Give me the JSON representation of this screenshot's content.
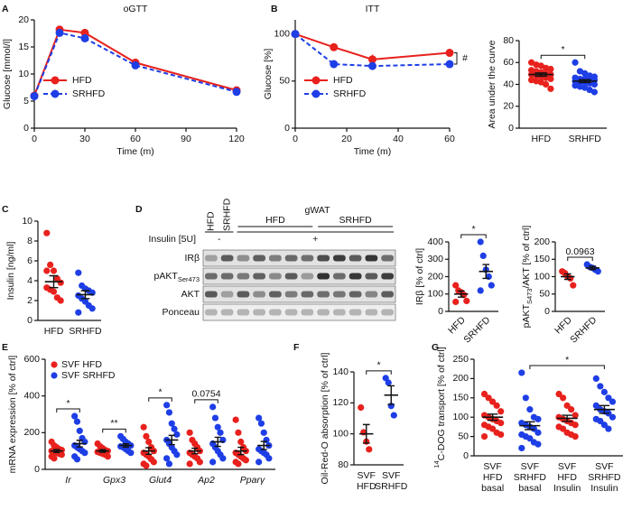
{
  "chart_data": [
    {
      "type": "line",
      "panel": "A",
      "title": "oGTT",
      "x": [
        0,
        15,
        30,
        60,
        120
      ],
      "xlim": [
        0,
        120
      ],
      "xticks": [
        0,
        30,
        60,
        90,
        120
      ],
      "ylim": [
        0,
        20
      ],
      "yticks": [
        0,
        5,
        10,
        15,
        20
      ],
      "xlabel": "Time (m)",
      "ylabel": "Glucose [mmol/l]",
      "legend": "lower left",
      "series": [
        {
          "name": "HFD",
          "color": "#e8211d",
          "values": [
            6.0,
            18.2,
            17.6,
            12.1,
            7.0
          ]
        },
        {
          "name": "SRHFD",
          "color": "#1e3ee6",
          "dashed": true,
          "values": [
            5.9,
            17.6,
            16.6,
            11.6,
            6.7
          ]
        }
      ]
    },
    {
      "type": "line",
      "panel": "B",
      "title": "ITT",
      "x": [
        0,
        15,
        30,
        60
      ],
      "xlim": [
        0,
        60
      ],
      "xticks": [
        0,
        20,
        40,
        60
      ],
      "ylim": [
        0,
        115
      ],
      "yticks": [
        0,
        50,
        100
      ],
      "xlabel": "Time (m)",
      "ylabel": "Glucose [%]",
      "legend": "lower left",
      "annotation": {
        "text": "#"
      },
      "series": [
        {
          "name": "HFD",
          "color": "#e8211d",
          "values": [
            100,
            86,
            73,
            80
          ],
          "errors": [
            0,
            4,
            5,
            4
          ]
        },
        {
          "name": "SRHFD",
          "color": "#1e3ee6",
          "dashed": true,
          "values": [
            100,
            68,
            66,
            68
          ],
          "errors": [
            0,
            3,
            2,
            3
          ]
        }
      ]
    },
    {
      "type": "dot",
      "ylabel": "Area under the curve",
      "categories": [
        "HFD",
        "SRHFD"
      ],
      "ylim": [
        0,
        80
      ],
      "yticks": [
        0,
        20,
        40,
        60,
        80
      ],
      "annotation": {
        "text": "*",
        "between": [
          0,
          1
        ]
      },
      "series": [
        {
          "colors": [
            "#e8211d",
            "#1e3ee6"
          ],
          "values": [
            [
              60,
              58,
              57,
              55,
              54,
              53,
              52,
              51,
              50,
              49,
              49,
              48,
              47,
              46,
              45,
              44,
              43,
              42,
              40,
              36
            ],
            [
              60,
              52,
              50,
              48,
              47,
              46,
              45,
              45,
              44,
              44,
              43,
              42,
              42,
              41,
              40,
              39,
              38,
              37,
              35,
              33
            ]
          ],
          "means": [
            49,
            43
          ],
          "sems": [
            1.5,
            1.3
          ]
        }
      ]
    },
    {
      "type": "dot",
      "panel": "C",
      "ylabel": "Insulin [ng/ml]",
      "categories": [
        "HFD",
        "SRHFD"
      ],
      "ylim": [
        0,
        10
      ],
      "yticks": [
        0,
        2,
        4,
        6,
        8,
        10
      ],
      "series": [
        {
          "colors": [
            "#e8211d",
            "#1e3ee6"
          ],
          "values": [
            [
              8.8,
              5.6,
              5.0,
              4.2,
              3.8,
              3.3,
              3.1,
              2.9,
              2.3,
              2.0,
              5.0
            ],
            [
              4.8,
              3.5,
              3.2,
              3.0,
              2.8,
              2.5,
              2.2,
              1.9,
              1.5,
              1.2,
              0.8
            ]
          ],
          "means": [
            3.9,
            2.6
          ],
          "sems": [
            0.6,
            0.4
          ]
        }
      ]
    },
    {
      "type": "blot",
      "panel": "D",
      "title": "gWAT",
      "lanes": [
        "HFD",
        "SRHFD",
        null,
        null,
        null,
        null,
        null,
        null,
        null,
        null,
        null,
        null
      ],
      "groups": [
        "HFD",
        "SRHFD"
      ],
      "treatment": {
        "label": "Insulin [5U]",
        "levels": [
          "-",
          "+"
        ]
      },
      "rows": [
        "IRβ",
        [
          {
            "text": "pAKT"
          },
          {
            "sub": "Ser473"
          }
        ],
        "AKT",
        "Ponceau"
      ]
    },
    {
      "type": "dot",
      "ylabel": "IRβ [% of ctrl]",
      "categories": [
        "HFD",
        "SRHFD"
      ],
      "rotate_labels": true,
      "ylim": [
        0,
        400
      ],
      "yticks": [
        0,
        100,
        200,
        300,
        400
      ],
      "annotation": {
        "text": "*",
        "between": [
          0,
          1
        ]
      },
      "series": [
        {
          "colors": [
            "#e8211d",
            "#1e3ee6"
          ],
          "values": [
            [
              150,
              120,
              110,
              95,
              60,
              55
            ],
            [
              400,
              320,
              240,
              200,
              150,
              120
            ]
          ],
          "means": [
            100,
            230
          ],
          "sems": [
            18,
            40
          ]
        }
      ]
    },
    {
      "type": "dot",
      "ylabel": [
        {
          "text": "pAKT"
        },
        {
          "sub": "S473"
        },
        {
          "text": "/AKT [% of ctrl]"
        }
      ],
      "categories": [
        "HFD",
        "SRHFD"
      ],
      "rotate_labels": true,
      "ylim": [
        0,
        200
      ],
      "yticks": [
        0,
        50,
        100,
        150,
        200
      ],
      "annotation": {
        "text": "0.0963",
        "between": [
          0,
          1
        ]
      },
      "series": [
        {
          "colors": [
            "#e8211d",
            "#1e3ee6"
          ],
          "values": [
            [
              115,
              110,
              100,
              95,
              75
            ],
            [
              135,
              128,
              125,
              120,
              115
            ]
          ],
          "means": [
            100,
            125
          ],
          "sems": [
            8,
            5
          ]
        }
      ]
    },
    {
      "type": "dot",
      "panel": "E",
      "ylabel": "mRNA expression [% of ctrl]",
      "categories": [
        "Ir",
        "Gpx3",
        "Glut4",
        "Ap2",
        "Pparγ"
      ],
      "italic_categories": true,
      "ylim": [
        0,
        600
      ],
      "yticks": [
        0,
        200,
        400,
        600
      ],
      "legend": "upper left",
      "annotations": [
        "*",
        "**",
        "*",
        "0.0754",
        null
      ],
      "series": [
        {
          "name": "SVF HFD",
          "color": "#e8211d",
          "values": [
            [
              150,
              130,
              120,
              110,
              105,
              100,
              95,
              90,
              85,
              80,
              70,
              60
            ],
            [
              140,
              125,
              115,
              105,
              100,
              95,
              90,
              85,
              80,
              70
            ],
            [
              230,
              180,
              150,
              120,
              100,
              90,
              80,
              70,
              55,
              40,
              30,
              20
            ],
            [
              200,
              160,
              140,
              120,
              100,
              90,
              80,
              70,
              60,
              40,
              30
            ],
            [
              270,
              200,
              150,
              120,
              100,
              90,
              80,
              70,
              60,
              50,
              40,
              30
            ]
          ],
          "means": [
            100,
            100,
            100,
            100,
            100
          ],
          "sems": [
            8,
            7,
            18,
            15,
            20
          ]
        },
        {
          "name": "SVF SRHFD",
          "color": "#1e3ee6",
          "values": [
            [
              290,
              260,
              210,
              170,
              150,
              130,
              120,
              110,
              100,
              90,
              70,
              55
            ],
            [
              180,
              165,
              150,
              140,
              130,
              125,
              120,
              110,
              100,
              90
            ],
            [
              350,
              310,
              250,
              220,
              190,
              160,
              140,
              120,
              100,
              80,
              60,
              30
            ],
            [
              340,
              280,
              230,
              200,
              160,
              140,
              120,
              100,
              80,
              60,
              40
            ],
            [
              280,
              250,
              200,
              160,
              130,
              110,
              100,
              90,
              80,
              60,
              40
            ]
          ],
          "means": [
            140,
            130,
            160,
            150,
            130
          ],
          "sems": [
            18,
            9,
            25,
            25,
            22
          ]
        }
      ]
    },
    {
      "type": "dot",
      "panel": "F",
      "ylabel": "Oil-Red-O absorption [% of ctrl]",
      "categories": [
        [
          "SVF",
          "HFD"
        ],
        [
          "SVF",
          "SRHFD"
        ]
      ],
      "ylim": [
        80,
        140
      ],
      "yticks": [
        80,
        100,
        120,
        140
      ],
      "annotation": {
        "text": "*",
        "between": [
          0,
          1
        ]
      },
      "series": [
        {
          "colors": [
            "#e8211d",
            "#1e3ee6"
          ],
          "values": [
            [
              117,
              101,
              95,
              90
            ],
            [
              136,
              133,
              118,
              112
            ]
          ],
          "means": [
            100,
            125
          ],
          "sems": [
            6,
            6
          ]
        }
      ]
    },
    {
      "type": "dot",
      "panel": "G",
      "ylabel": [
        {
          "sup": "14"
        },
        {
          "text": "C-DOG transport [% of ctrl]"
        }
      ],
      "categories": [
        [
          "SVF",
          "HFD",
          "basal"
        ],
        [
          "SVF",
          "SRHFD",
          "basal"
        ],
        [
          "SVF",
          "HFD",
          "Insulin"
        ],
        [
          "SVF",
          "SRHFD",
          "Insulin"
        ]
      ],
      "ylim": [
        0,
        250
      ],
      "yticks": [
        0,
        50,
        100,
        150,
        200,
        250
      ],
      "annotation": {
        "text": "*",
        "between": [
          1,
          3
        ]
      },
      "series": [
        {
          "colors": [
            "#e8211d",
            "#1e3ee6",
            "#e8211d",
            "#1e3ee6"
          ],
          "values": [
            [
              160,
              150,
              140,
              130,
              115,
              105,
              100,
              95,
              90,
              85,
              80,
              75,
              70,
              60,
              55,
              50
            ],
            [
              215,
              150,
              120,
              100,
              95,
              85,
              80,
              75,
              70,
              60,
              55,
              50,
              45,
              35,
              30,
              20
            ],
            [
              160,
              150,
              130,
              120,
              105,
              100,
              95,
              90,
              85,
              80,
              75,
              70,
              60,
              55,
              50
            ],
            [
              200,
              180,
              165,
              150,
              140,
              130,
              120,
              115,
              110,
              100,
              95,
              90,
              80,
              70
            ]
          ],
          "means": [
            100,
            78,
            97,
            120
          ],
          "sems": [
            8,
            10,
            8,
            10
          ]
        }
      ]
    }
  ]
}
